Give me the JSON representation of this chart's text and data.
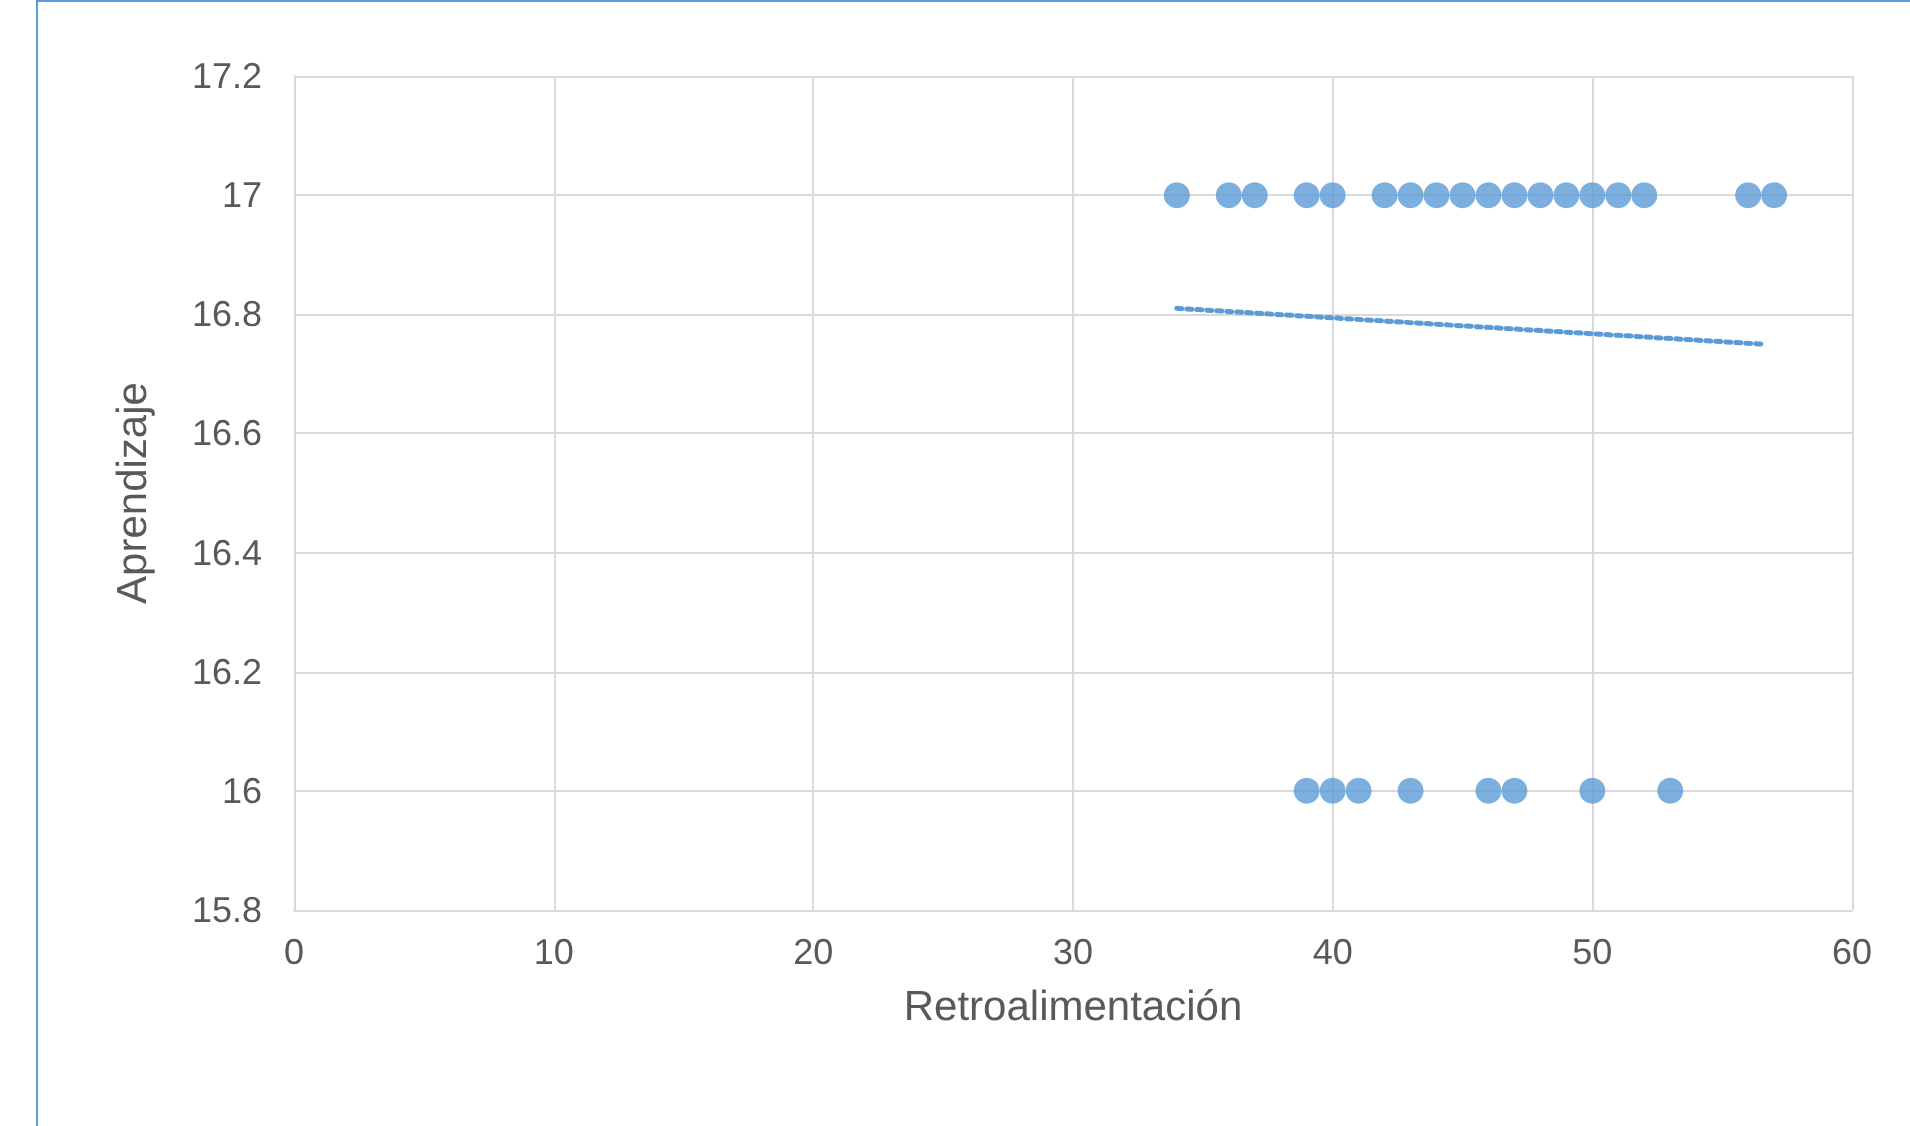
{
  "chart_data": {
    "type": "scatter",
    "xlabel": "Retroalimentación",
    "ylabel": "Aprendizaje",
    "xlim": [
      0,
      60
    ],
    "xticks": [
      0,
      10,
      20,
      30,
      40,
      50,
      60
    ],
    "ylim": [
      15.8,
      17.2
    ],
    "yticks": [
      15.8,
      16,
      16.2,
      16.4,
      16.6,
      16.8,
      17,
      17.2
    ],
    "grid": true,
    "marker": "circle",
    "series": [
      {
        "color": "#5b9bd5",
        "x": [
          34,
          36,
          37,
          39,
          40,
          42,
          43,
          44,
          45,
          46,
          47,
          48,
          49,
          50,
          51,
          52,
          56,
          57,
          39,
          40,
          41,
          43,
          46,
          47,
          50,
          53
        ],
        "values": [
          17,
          17,
          17,
          17,
          17,
          17,
          17,
          17,
          17,
          17,
          17,
          17,
          17,
          17,
          17,
          17,
          17,
          17,
          16,
          16,
          16,
          16,
          16,
          16,
          16,
          16
        ]
      },
      {
        "type": "line",
        "color": "#5b9bd5",
        "marker": "none",
        "line_style": "dotted",
        "x": [
          34,
          56.5
        ],
        "values": [
          16.81,
          16.75
        ]
      }
    ]
  }
}
